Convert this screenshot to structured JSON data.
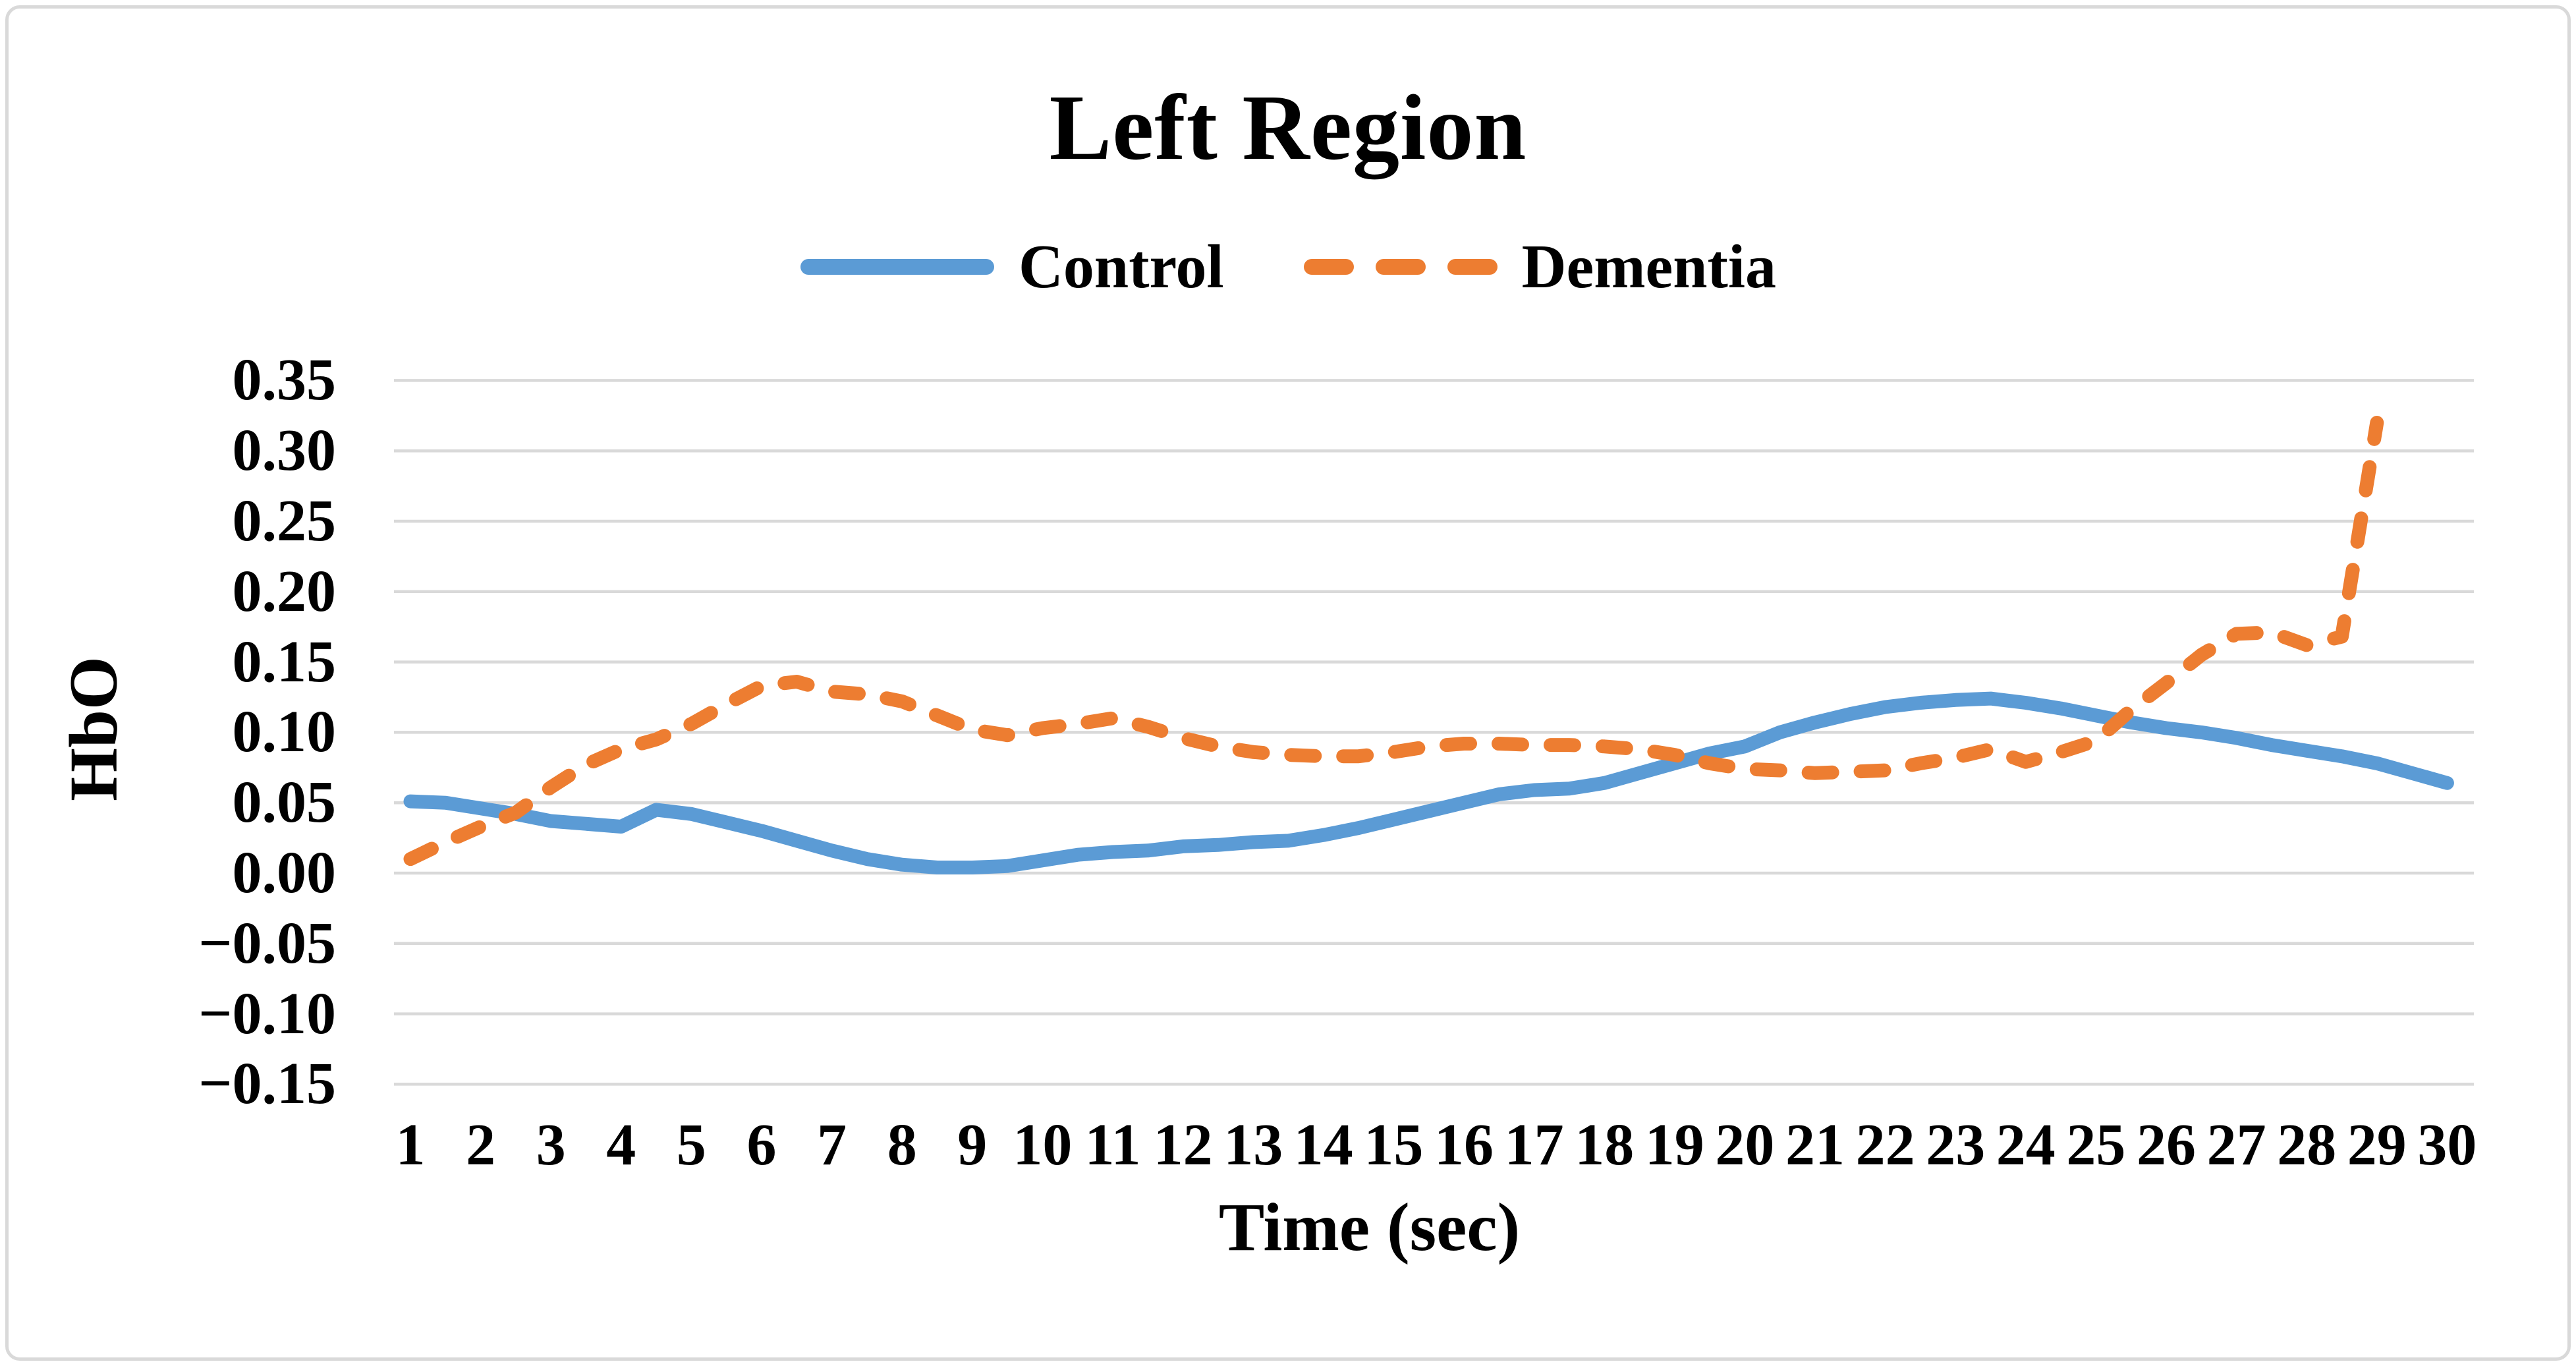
{
  "chart_data": {
    "type": "line",
    "title": "Left Region",
    "xlabel": "Time (sec)",
    "ylabel": "HbO",
    "legend_position": "top-center",
    "grid": "horizontal",
    "xlim": [
      1,
      30
    ],
    "ylim": [
      -0.15,
      0.35
    ],
    "x_ticks": [
      1,
      2,
      3,
      4,
      5,
      6,
      7,
      8,
      9,
      10,
      11,
      12,
      13,
      14,
      15,
      16,
      17,
      18,
      19,
      20,
      21,
      22,
      23,
      24,
      25,
      26,
      27,
      28,
      29,
      30
    ],
    "y_ticks": [
      {
        "label": "0.35",
        "value": 0.35
      },
      {
        "label": "0.30",
        "value": 0.3
      },
      {
        "label": "0.25",
        "value": 0.25
      },
      {
        "label": "0.20",
        "value": 0.2
      },
      {
        "label": "0.15",
        "value": 0.15
      },
      {
        "label": "0.10",
        "value": 0.1
      },
      {
        "label": "0.05",
        "value": 0.05
      },
      {
        "label": "0.00",
        "value": 0.0
      },
      {
        "label": "−0.05",
        "value": -0.05
      },
      {
        "label": "−0.10",
        "value": -0.1
      },
      {
        "label": "−0.15",
        "value": -0.15
      }
    ],
    "series": [
      {
        "name": "Control",
        "color": "#5B9BD5",
        "line_style": "solid",
        "x": [
          1,
          1.5,
          2,
          2.5,
          3,
          3.5,
          4,
          4.5,
          5,
          5.5,
          6,
          6.5,
          7,
          7.5,
          8,
          8.5,
          9,
          9.5,
          10,
          10.5,
          11,
          11.5,
          12,
          12.5,
          13,
          13.5,
          14,
          14.5,
          15,
          15.5,
          16,
          16.5,
          17,
          17.5,
          18,
          18.5,
          19,
          19.5,
          20,
          20.5,
          21,
          21.5,
          22,
          22.5,
          23,
          23.5,
          24,
          24.5,
          25,
          25.5,
          26,
          26.5,
          27,
          27.5,
          28,
          28.5,
          29,
          29.5,
          30
        ],
        "values": [
          0.051,
          0.05,
          0.046,
          0.042,
          0.037,
          0.035,
          0.033,
          0.045,
          0.042,
          0.036,
          0.03,
          0.023,
          0.016,
          0.01,
          0.006,
          0.004,
          0.004,
          0.005,
          0.009,
          0.013,
          0.015,
          0.016,
          0.019,
          0.02,
          0.022,
          0.023,
          0.027,
          0.032,
          0.038,
          0.044,
          0.05,
          0.056,
          0.059,
          0.06,
          0.064,
          0.071,
          0.078,
          0.085,
          0.09,
          0.1,
          0.107,
          0.113,
          0.118,
          0.121,
          0.123,
          0.124,
          0.121,
          0.117,
          0.112,
          0.107,
          0.103,
          0.1,
          0.096,
          0.091,
          0.087,
          0.083,
          0.078,
          0.071,
          0.064
        ]
      },
      {
        "name": "Dementia",
        "color": "#ED7D31",
        "line_style": "dashed",
        "x": [
          1,
          1.5,
          2,
          2.5,
          3,
          3.5,
          4,
          4.5,
          5,
          5.5,
          6,
          6.5,
          7,
          7.5,
          8,
          8.5,
          9,
          9.5,
          10,
          10.5,
          11,
          11.5,
          12,
          12.5,
          13,
          13.5,
          14,
          14.5,
          15,
          15.5,
          16,
          16.5,
          17,
          17.5,
          18,
          18.5,
          19,
          19.5,
          20,
          20.5,
          21,
          21.5,
          22,
          22.5,
          23,
          23.5,
          24,
          24.5,
          25,
          25.5,
          26,
          26.5,
          27,
          27.5,
          28,
          28.5,
          29
        ],
        "values": [
          0.01,
          0.022,
          0.033,
          0.043,
          0.061,
          0.077,
          0.088,
          0.095,
          0.106,
          0.12,
          0.133,
          0.136,
          0.129,
          0.127,
          0.122,
          0.112,
          0.102,
          0.098,
          0.103,
          0.106,
          0.11,
          0.104,
          0.096,
          0.09,
          0.086,
          0.084,
          0.083,
          0.083,
          0.086,
          0.09,
          0.092,
          0.092,
          0.091,
          0.091,
          0.09,
          0.088,
          0.084,
          0.078,
          0.074,
          0.073,
          0.071,
          0.072,
          0.073,
          0.078,
          0.082,
          0.088,
          0.079,
          0.086,
          0.094,
          0.116,
          0.135,
          0.155,
          0.17,
          0.171,
          0.162,
          0.168,
          0.32
        ]
      }
    ]
  },
  "colors": {
    "gridline": "#D9D9D9",
    "text": "#000000",
    "background": "#FFFFFF",
    "border": "#D9D9D9"
  }
}
